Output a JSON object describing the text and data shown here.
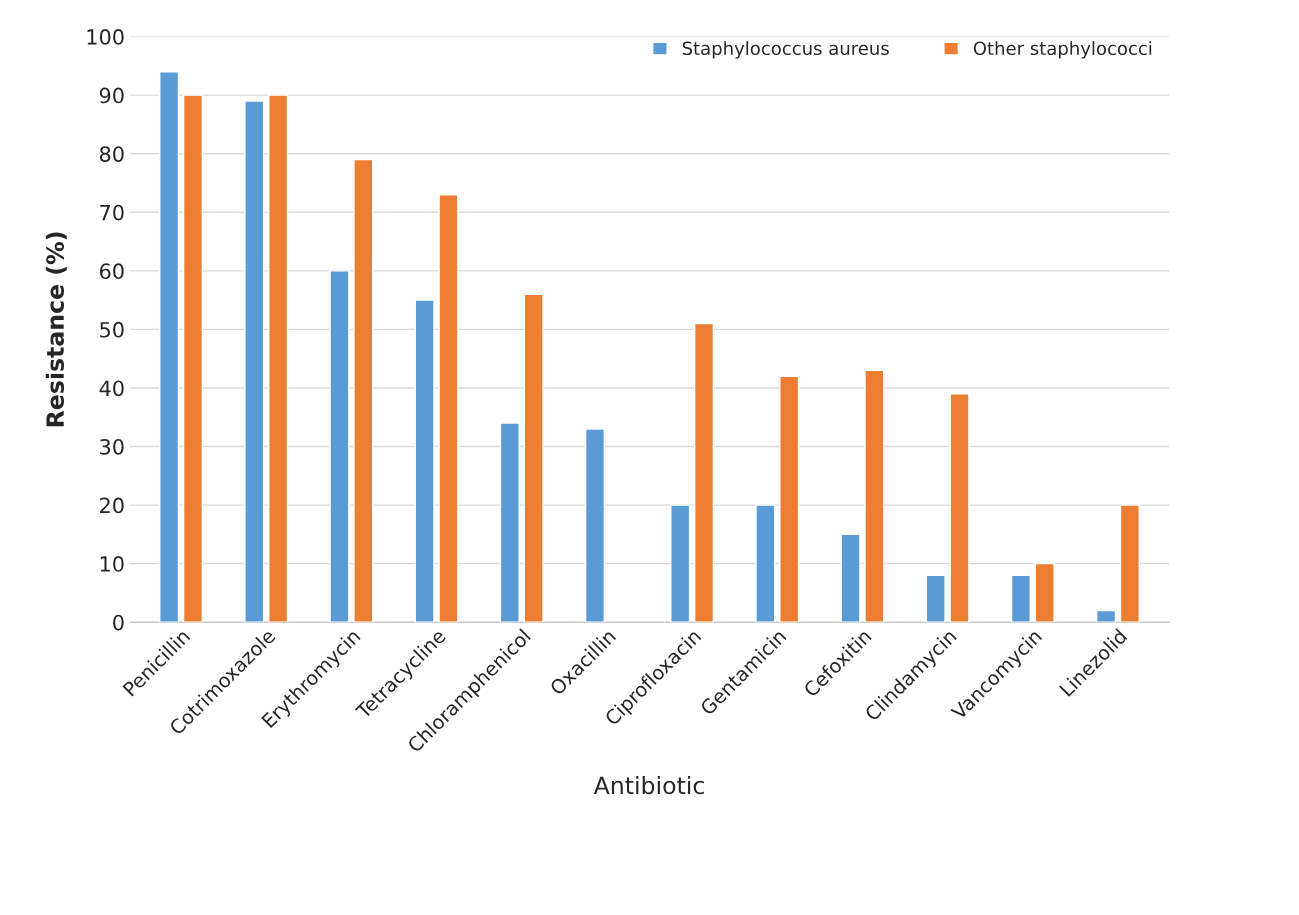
{
  "chart_data": {
    "type": "bar",
    "xlabel": "Antibiotic",
    "ylabel": "Resistance (%)",
    "categories": [
      "Penicillin",
      "Cotrimoxazole",
      "Erythromycin",
      "Tetracycline",
      "Chloramphenicol",
      "Oxacillin",
      "Ciprofloxacin",
      "Gentamicin",
      "Cefoxitin",
      "Clindamycin",
      "Vancomycin",
      "Linezolid"
    ],
    "series": [
      {
        "name": "Staphylococcus aureus",
        "color": "#5b9bd5",
        "values": [
          94,
          89,
          60,
          55,
          34,
          33,
          20,
          20,
          15,
          8,
          8,
          2
        ]
      },
      {
        "name": "Other staphylococci",
        "color": "#ed7d31",
        "values": [
          90,
          90,
          79,
          73,
          56,
          null,
          51,
          42,
          43,
          39,
          10,
          20
        ]
      }
    ],
    "ylim": [
      0,
      100
    ],
    "yticks": [
      0,
      10,
      20,
      30,
      40,
      50,
      60,
      70,
      80,
      90,
      100
    ],
    "grid": "y",
    "legend": "top right"
  }
}
